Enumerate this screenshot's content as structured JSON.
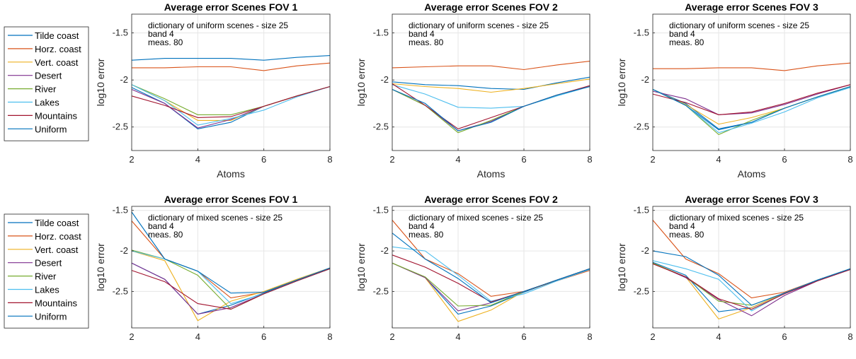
{
  "figure": {
    "legend_entries": [
      "Tilde coast",
      "Horz. coast",
      "Vert. coast",
      "Desert",
      "River",
      "Lakes",
      "Mountains",
      "Uniform"
    ],
    "series_colors": [
      "#0072BD",
      "#D95319",
      "#EDB120",
      "#7E2F8E",
      "#77AC30",
      "#4DBEEE",
      "#A2142F",
      "#0072BD"
    ]
  },
  "chart_data": [
    {
      "type": "line",
      "title": "Average error Scenes FOV 1",
      "xlabel": "Atoms",
      "ylabel": "log10 error",
      "xlim": [
        2,
        8
      ],
      "ylim": [
        -2.75,
        -1.3
      ],
      "xticks": [
        2,
        4,
        6,
        8
      ],
      "yticks": [
        -1.5,
        -2,
        -2.5
      ],
      "grid": true,
      "annotation": [
        "dictionary of uniform scenes - size 25",
        "band 4",
        "meas. 80"
      ],
      "x": [
        2,
        3,
        4,
        5,
        6,
        7,
        8
      ],
      "series": [
        {
          "name": "Tilde coast",
          "values": [
            -2.08,
            -2.25,
            -2.52,
            -2.45,
            -2.28,
            -2.17,
            -2.07
          ]
        },
        {
          "name": "Horz. coast",
          "values": [
            -1.87,
            -1.87,
            -1.86,
            -1.86,
            -1.9,
            -1.85,
            -1.82
          ]
        },
        {
          "name": "Vert. coast",
          "values": [
            -2.05,
            -2.22,
            -2.43,
            -2.43,
            -2.28,
            -2.17,
            -2.07
          ]
        },
        {
          "name": "Desert",
          "values": [
            -2.1,
            -2.25,
            -2.51,
            -2.42,
            -2.28,
            -2.17,
            -2.07
          ]
        },
        {
          "name": "River",
          "values": [
            -2.05,
            -2.2,
            -2.37,
            -2.37,
            -2.28,
            -2.17,
            -2.07
          ]
        },
        {
          "name": "Lakes",
          "values": [
            -2.05,
            -2.22,
            -2.48,
            -2.41,
            -2.32,
            -2.18,
            -2.07
          ]
        },
        {
          "name": "Mountains",
          "values": [
            -2.17,
            -2.27,
            -2.4,
            -2.39,
            -2.28,
            -2.17,
            -2.07
          ]
        },
        {
          "name": "Uniform",
          "values": [
            -1.79,
            -1.77,
            -1.77,
            -1.77,
            -1.79,
            -1.76,
            -1.74
          ]
        }
      ]
    },
    {
      "type": "line",
      "title": "Average error Scenes FOV 2",
      "xlabel": "Atoms",
      "ylabel": "log10 error",
      "xlim": [
        2,
        8
      ],
      "ylim": [
        -2.75,
        -1.3
      ],
      "xticks": [
        2,
        4,
        6,
        8
      ],
      "yticks": [
        -1.5,
        -2,
        -2.5
      ],
      "grid": true,
      "annotation": [
        "dictionary of uniform scenes - size 25",
        "band 4",
        "meas. 80"
      ],
      "x": [
        2,
        3,
        4,
        5,
        6,
        7,
        8
      ],
      "series": [
        {
          "name": "Tilde coast",
          "values": [
            -2.02,
            -2.05,
            -2.06,
            -2.09,
            -2.1,
            -2.03,
            -1.97
          ]
        },
        {
          "name": "Horz. coast",
          "values": [
            -1.87,
            -1.86,
            -1.85,
            -1.85,
            -1.89,
            -1.84,
            -1.8
          ]
        },
        {
          "name": "Vert. coast",
          "values": [
            -2.04,
            -2.07,
            -2.09,
            -2.13,
            -2.09,
            -2.04,
            -1.99
          ]
        },
        {
          "name": "Desert",
          "values": [
            -2.1,
            -2.27,
            -2.54,
            -2.44,
            -2.28,
            -2.16,
            -2.07
          ]
        },
        {
          "name": "River",
          "values": [
            -2.1,
            -2.27,
            -2.56,
            -2.43,
            -2.28,
            -2.16,
            -2.07
          ]
        },
        {
          "name": "Lakes",
          "values": [
            -2.05,
            -2.15,
            -2.29,
            -2.3,
            -2.28,
            -2.17,
            -2.07
          ]
        },
        {
          "name": "Mountains",
          "values": [
            -2.04,
            -2.27,
            -2.52,
            -2.4,
            -2.28,
            -2.16,
            -2.06
          ]
        },
        {
          "name": "Uniform",
          "values": [
            -2.1,
            -2.25,
            -2.54,
            -2.45,
            -2.28,
            -2.16,
            -2.07
          ]
        }
      ]
    },
    {
      "type": "line",
      "title": "Average error Scenes FOV 3",
      "xlabel": "Atoms",
      "ylabel": "log10 error",
      "xlim": [
        2,
        8
      ],
      "ylim": [
        -2.75,
        -1.3
      ],
      "xticks": [
        2,
        4,
        6,
        8
      ],
      "yticks": [
        -1.5,
        -2,
        -2.5
      ],
      "grid": true,
      "annotation": [
        "dictionary of uniform scenes - size 25",
        "band 4",
        "meas. 80"
      ],
      "x": [
        2,
        3,
        4,
        5,
        6,
        7,
        8
      ],
      "series": [
        {
          "name": "Tilde coast",
          "values": [
            -2.1,
            -2.25,
            -2.52,
            -2.45,
            -2.3,
            -2.18,
            -2.07
          ]
        },
        {
          "name": "Horz. coast",
          "values": [
            -1.88,
            -1.88,
            -1.87,
            -1.87,
            -1.9,
            -1.85,
            -1.82
          ]
        },
        {
          "name": "Vert. coast",
          "values": [
            -2.1,
            -2.26,
            -2.47,
            -2.4,
            -2.3,
            -2.18,
            -2.07
          ]
        },
        {
          "name": "Desert",
          "values": [
            -2.12,
            -2.2,
            -2.37,
            -2.35,
            -2.26,
            -2.15,
            -2.05
          ]
        },
        {
          "name": "River",
          "values": [
            -2.1,
            -2.27,
            -2.58,
            -2.43,
            -2.3,
            -2.18,
            -2.07
          ]
        },
        {
          "name": "Lakes",
          "values": [
            -2.1,
            -2.27,
            -2.56,
            -2.46,
            -2.34,
            -2.19,
            -2.08
          ]
        },
        {
          "name": "Mountains",
          "values": [
            -2.15,
            -2.24,
            -2.37,
            -2.34,
            -2.25,
            -2.14,
            -2.05
          ]
        },
        {
          "name": "Uniform",
          "values": [
            -2.1,
            -2.27,
            -2.53,
            -2.45,
            -2.3,
            -2.18,
            -2.07
          ]
        }
      ]
    },
    {
      "type": "line",
      "title": "Average error Scenes FOV 1",
      "xlabel": "",
      "ylabel": "log10 error",
      "xlim": [
        2,
        8
      ],
      "ylim": [
        -2.95,
        -1.45
      ],
      "xticks": [
        2,
        4,
        6,
        8
      ],
      "yticks": [
        -1.5,
        -2,
        -2.5
      ],
      "grid": true,
      "annotation": [
        "dictionary of mixed scenes - size 25",
        "band 4",
        "meas. 80"
      ],
      "x": [
        2,
        3,
        4,
        5,
        6,
        7,
        8
      ],
      "series": [
        {
          "name": "Tilde coast",
          "values": [
            -2.15,
            -2.35,
            -2.78,
            -2.67,
            -2.52,
            -2.36,
            -2.21
          ]
        },
        {
          "name": "Horz. coast",
          "values": [
            -1.63,
            -2.1,
            -2.25,
            -2.58,
            -2.51,
            -2.36,
            -2.22
          ]
        },
        {
          "name": "Vert. coast",
          "values": [
            -2.0,
            -2.12,
            -2.86,
            -2.62,
            -2.5,
            -2.35,
            -2.21
          ]
        },
        {
          "name": "Desert",
          "values": [
            -2.15,
            -2.35,
            -2.78,
            -2.7,
            -2.53,
            -2.37,
            -2.22
          ]
        },
        {
          "name": "River",
          "values": [
            -1.99,
            -2.1,
            -2.3,
            -2.72,
            -2.53,
            -2.37,
            -2.22
          ]
        },
        {
          "name": "Lakes",
          "values": [
            -2.0,
            -2.1,
            -2.25,
            -2.65,
            -2.53,
            -2.37,
            -2.22
          ]
        },
        {
          "name": "Mountains",
          "values": [
            -2.24,
            -2.38,
            -2.65,
            -2.72,
            -2.53,
            -2.37,
            -2.22
          ]
        },
        {
          "name": "Uniform",
          "values": [
            -1.52,
            -2.1,
            -2.25,
            -2.52,
            -2.51,
            -2.36,
            -2.21
          ]
        }
      ]
    },
    {
      "type": "line",
      "title": "Average error Scenes FOV 2",
      "xlabel": "",
      "ylabel": "log10 error",
      "xlim": [
        2,
        8
      ],
      "ylim": [
        -2.95,
        -1.45
      ],
      "xticks": [
        2,
        4,
        6,
        8
      ],
      "yticks": [
        -1.5,
        -2,
        -2.5
      ],
      "grid": true,
      "annotation": [
        "dictionary of mixed scenes - size 25",
        "band 4",
        "meas. 80"
      ],
      "x": [
        2,
        3,
        4,
        5,
        6,
        7,
        8
      ],
      "series": [
        {
          "name": "Tilde coast",
          "values": [
            -2.15,
            -2.33,
            -2.78,
            -2.68,
            -2.51,
            -2.36,
            -2.22
          ]
        },
        {
          "name": "Horz. coast",
          "values": [
            -1.62,
            -2.1,
            -2.28,
            -2.56,
            -2.5,
            -2.37,
            -2.24
          ]
        },
        {
          "name": "Vert. coast",
          "values": [
            -2.15,
            -2.33,
            -2.87,
            -2.73,
            -2.5,
            -2.36,
            -2.22
          ]
        },
        {
          "name": "Desert",
          "values": [
            -2.15,
            -2.33,
            -2.74,
            -2.64,
            -2.5,
            -2.36,
            -2.22
          ]
        },
        {
          "name": "River",
          "values": [
            -2.15,
            -2.32,
            -2.68,
            -2.67,
            -2.5,
            -2.36,
            -2.22
          ]
        },
        {
          "name": "Lakes",
          "values": [
            -1.95,
            -2.0,
            -2.3,
            -2.62,
            -2.53,
            -2.37,
            -2.23
          ]
        },
        {
          "name": "Mountains",
          "values": [
            -2.05,
            -2.2,
            -2.4,
            -2.63,
            -2.5,
            -2.36,
            -2.22
          ]
        },
        {
          "name": "Uniform",
          "values": [
            -1.78,
            -2.1,
            -2.34,
            -2.64,
            -2.5,
            -2.36,
            -2.22
          ]
        }
      ]
    },
    {
      "type": "line",
      "title": "Average error Scenes FOV 3",
      "xlabel": "",
      "ylabel": "log10 error",
      "xlim": [
        2,
        8
      ],
      "ylim": [
        -2.95,
        -1.45
      ],
      "xticks": [
        2,
        4,
        6,
        8
      ],
      "yticks": [
        -1.5,
        -2,
        -2.5
      ],
      "grid": true,
      "annotation": [
        "dictionary of mixed scenes - size 25",
        "band 4",
        "meas. 80"
      ],
      "x": [
        2,
        3,
        4,
        5,
        6,
        7,
        8
      ],
      "series": [
        {
          "name": "Tilde coast",
          "values": [
            -2.14,
            -2.3,
            -2.75,
            -2.7,
            -2.52,
            -2.36,
            -2.22
          ]
        },
        {
          "name": "Horz. coast",
          "values": [
            -1.62,
            -2.1,
            -2.28,
            -2.58,
            -2.51,
            -2.36,
            -2.22
          ]
        },
        {
          "name": "Vert. coast",
          "values": [
            -2.15,
            -2.32,
            -2.84,
            -2.7,
            -2.52,
            -2.36,
            -2.22
          ]
        },
        {
          "name": "Desert",
          "values": [
            -2.15,
            -2.33,
            -2.6,
            -2.8,
            -2.55,
            -2.37,
            -2.23
          ]
        },
        {
          "name": "River",
          "values": [
            -2.15,
            -2.32,
            -2.62,
            -2.67,
            -2.52,
            -2.36,
            -2.22
          ]
        },
        {
          "name": "Lakes",
          "values": [
            -2.12,
            -2.22,
            -2.35,
            -2.74,
            -2.52,
            -2.36,
            -2.22
          ]
        },
        {
          "name": "Mountains",
          "values": [
            -2.16,
            -2.32,
            -2.59,
            -2.72,
            -2.53,
            -2.37,
            -2.23
          ]
        },
        {
          "name": "Uniform",
          "values": [
            -2.0,
            -2.07,
            -2.3,
            -2.67,
            -2.52,
            -2.36,
            -2.22
          ]
        }
      ]
    }
  ]
}
